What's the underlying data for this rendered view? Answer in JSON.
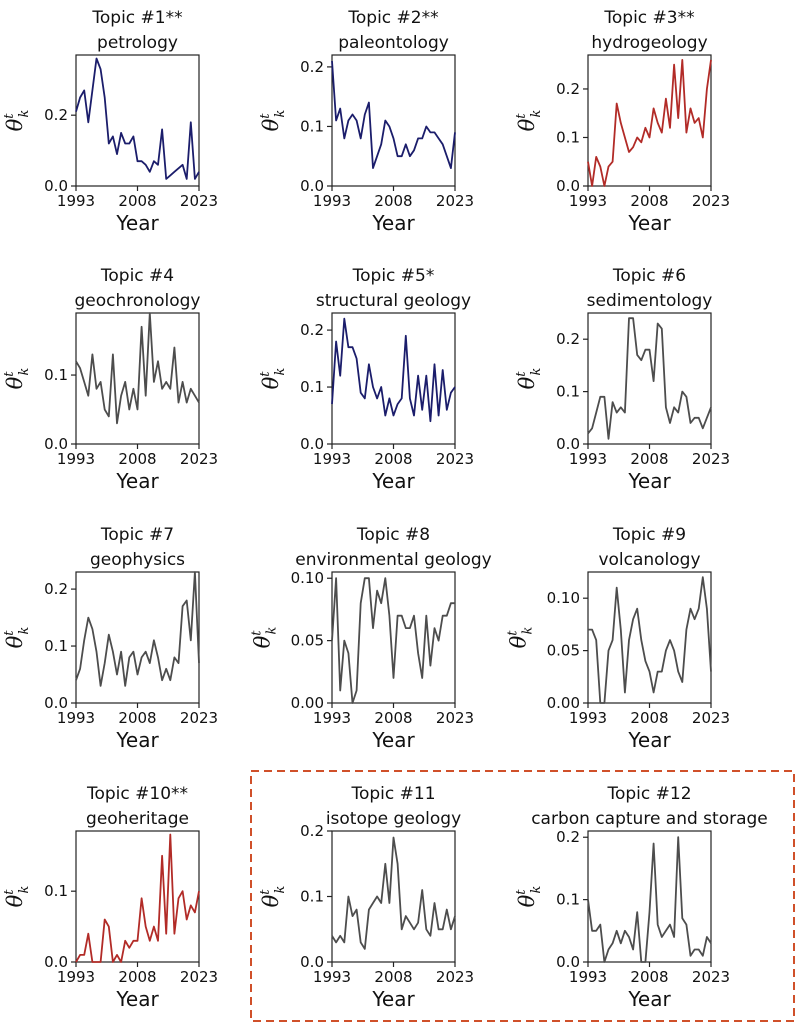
{
  "colors": {
    "navy": "#1b1d6b",
    "red": "#b22b27",
    "gray": "#4d4d4d",
    "dash": "#d0502a"
  },
  "common": {
    "xlabel": "Year",
    "ylabel_base": "θ",
    "ylabel_sup": "t",
    "ylabel_sub": "k"
  },
  "chart_data": [
    {
      "type": "line",
      "title": [
        "Topic #1**",
        "petrology"
      ],
      "color": "navy",
      "xticks": [
        "1993",
        "2008",
        "2023"
      ],
      "xlim": [
        1993,
        2023
      ],
      "yticks": [
        "0.0",
        "0.2"
      ],
      "ytick_vals": [
        0,
        0.2
      ],
      "ylim": [
        0,
        0.37
      ],
      "values": [
        0.21,
        0.25,
        0.27,
        0.18,
        0.27,
        0.36,
        0.33,
        0.25,
        0.12,
        0.14,
        0.09,
        0.15,
        0.12,
        0.12,
        0.14,
        0.07,
        0.07,
        0.06,
        0.04,
        0.07,
        0.06,
        0.16,
        0.02,
        0.03,
        0.04,
        0.05,
        0.06,
        0.02,
        0.18,
        0.02,
        0.04
      ]
    },
    {
      "type": "line",
      "title": [
        "Topic #2**",
        "paleontology"
      ],
      "color": "navy",
      "xticks": [
        "1993",
        "2008",
        "2023"
      ],
      "xlim": [
        1993,
        2023
      ],
      "yticks": [
        "0.0",
        "0.1",
        "0.2"
      ],
      "ytick_vals": [
        0,
        0.1,
        0.2
      ],
      "ylim": [
        0,
        0.22
      ],
      "values": [
        0.21,
        0.11,
        0.13,
        0.08,
        0.11,
        0.12,
        0.11,
        0.08,
        0.12,
        0.14,
        0.03,
        0.05,
        0.07,
        0.11,
        0.1,
        0.08,
        0.05,
        0.05,
        0.07,
        0.05,
        0.06,
        0.08,
        0.08,
        0.1,
        0.09,
        0.09,
        0.08,
        0.07,
        0.05,
        0.03,
        0.09
      ]
    },
    {
      "type": "line",
      "title": [
        "Topic #3**",
        "hydrogeology"
      ],
      "color": "red",
      "xticks": [
        "1993",
        "2008",
        "2023"
      ],
      "xlim": [
        1993,
        2023
      ],
      "yticks": [
        "0.0",
        "0.1",
        "0.2"
      ],
      "ytick_vals": [
        0,
        0.1,
        0.2
      ],
      "ylim": [
        0,
        0.27
      ],
      "values": [
        0.05,
        0.0,
        0.06,
        0.04,
        0.0,
        0.04,
        0.05,
        0.17,
        0.13,
        0.1,
        0.07,
        0.08,
        0.1,
        0.09,
        0.12,
        0.1,
        0.16,
        0.13,
        0.11,
        0.18,
        0.12,
        0.25,
        0.14,
        0.26,
        0.11,
        0.16,
        0.13,
        0.14,
        0.1,
        0.2,
        0.26
      ]
    },
    {
      "type": "line",
      "title": [
        "Topic #4",
        "geochronology"
      ],
      "color": "gray",
      "xticks": [
        "1993",
        "2008",
        "2023"
      ],
      "xlim": [
        1993,
        2023
      ],
      "yticks": [
        "0.0",
        "0.1"
      ],
      "ytick_vals": [
        0,
        0.1
      ],
      "ylim": [
        0,
        0.19
      ],
      "values": [
        0.12,
        0.11,
        0.09,
        0.07,
        0.13,
        0.08,
        0.09,
        0.05,
        0.04,
        0.13,
        0.03,
        0.07,
        0.09,
        0.05,
        0.08,
        0.05,
        0.17,
        0.07,
        0.19,
        0.09,
        0.12,
        0.08,
        0.09,
        0.08,
        0.14,
        0.06,
        0.09,
        0.06,
        0.08,
        0.07,
        0.06
      ]
    },
    {
      "type": "line",
      "title": [
        "Topic #5*",
        "structural geology"
      ],
      "color": "navy",
      "xticks": [
        "1993",
        "2008",
        "2023"
      ],
      "xlim": [
        1993,
        2023
      ],
      "yticks": [
        "0.0",
        "0.1",
        "0.2"
      ],
      "ytick_vals": [
        0,
        0.1,
        0.2
      ],
      "ylim": [
        0,
        0.23
      ],
      "values": [
        0.07,
        0.18,
        0.12,
        0.22,
        0.17,
        0.17,
        0.15,
        0.09,
        0.08,
        0.14,
        0.1,
        0.08,
        0.1,
        0.05,
        0.08,
        0.05,
        0.07,
        0.08,
        0.19,
        0.08,
        0.05,
        0.12,
        0.06,
        0.12,
        0.04,
        0.14,
        0.05,
        0.13,
        0.06,
        0.09,
        0.1
      ]
    },
    {
      "type": "line",
      "title": [
        "Topic #6",
        "sedimentology"
      ],
      "color": "gray",
      "xticks": [
        "1993",
        "2008",
        "2023"
      ],
      "xlim": [
        1993,
        2023
      ],
      "yticks": [
        "0.0",
        "0.1",
        "0.2"
      ],
      "ytick_vals": [
        0,
        0.1,
        0.2
      ],
      "ylim": [
        0,
        0.25
      ],
      "values": [
        0.02,
        0.03,
        0.06,
        0.09,
        0.09,
        0.01,
        0.08,
        0.06,
        0.07,
        0.06,
        0.24,
        0.24,
        0.17,
        0.16,
        0.18,
        0.18,
        0.12,
        0.23,
        0.22,
        0.07,
        0.04,
        0.07,
        0.06,
        0.1,
        0.09,
        0.04,
        0.05,
        0.05,
        0.03,
        0.05,
        0.07
      ]
    },
    {
      "type": "line",
      "title": [
        "Topic #7",
        "geophysics"
      ],
      "color": "gray",
      "xticks": [
        "1993",
        "2008",
        "2023"
      ],
      "xlim": [
        1993,
        2023
      ],
      "yticks": [
        "0.0",
        "0.1",
        "0.2"
      ],
      "ytick_vals": [
        0,
        0.1,
        0.2
      ],
      "ylim": [
        0,
        0.23
      ],
      "values": [
        0.04,
        0.06,
        0.11,
        0.15,
        0.13,
        0.09,
        0.03,
        0.07,
        0.12,
        0.09,
        0.05,
        0.09,
        0.03,
        0.08,
        0.09,
        0.05,
        0.08,
        0.09,
        0.07,
        0.11,
        0.08,
        0.04,
        0.06,
        0.04,
        0.08,
        0.07,
        0.17,
        0.18,
        0.11,
        0.23,
        0.07
      ]
    },
    {
      "type": "line",
      "title": [
        "Topic #8",
        "environmental geology"
      ],
      "color": "gray",
      "xticks": [
        "1993",
        "2008",
        "2023"
      ],
      "xlim": [
        1993,
        2023
      ],
      "yticks": [
        "0.00",
        "0.05",
        "0.10"
      ],
      "ytick_vals": [
        0,
        0.05,
        0.1
      ],
      "ylim": [
        0,
        0.105
      ],
      "values": [
        0.05,
        0.1,
        0.01,
        0.05,
        0.04,
        0.0,
        0.01,
        0.08,
        0.1,
        0.1,
        0.06,
        0.09,
        0.08,
        0.1,
        0.07,
        0.02,
        0.07,
        0.07,
        0.06,
        0.06,
        0.07,
        0.04,
        0.02,
        0.07,
        0.03,
        0.06,
        0.05,
        0.07,
        0.07,
        0.08,
        0.08
      ]
    },
    {
      "type": "line",
      "title": [
        "Topic #9",
        "volcanology"
      ],
      "color": "gray",
      "xticks": [
        "1993",
        "2008",
        "2023"
      ],
      "xlim": [
        1993,
        2023
      ],
      "yticks": [
        "0.00",
        "0.05",
        "0.10"
      ],
      "ytick_vals": [
        0,
        0.05,
        0.1
      ],
      "ylim": [
        0,
        0.125
      ],
      "values": [
        0.07,
        0.07,
        0.06,
        0.0,
        0.0,
        0.05,
        0.06,
        0.11,
        0.07,
        0.01,
        0.06,
        0.08,
        0.09,
        0.06,
        0.04,
        0.03,
        0.01,
        0.03,
        0.03,
        0.05,
        0.06,
        0.05,
        0.03,
        0.02,
        0.07,
        0.09,
        0.08,
        0.09,
        0.12,
        0.09,
        0.03
      ]
    },
    {
      "type": "line",
      "title": [
        "Topic #10**",
        "geoheritage"
      ],
      "color": "red",
      "xticks": [
        "1993",
        "2008",
        "2023"
      ],
      "xlim": [
        1993,
        2023
      ],
      "yticks": [
        "0.0",
        "0.1"
      ],
      "ytick_vals": [
        0,
        0.1
      ],
      "ylim": [
        0,
        0.185
      ],
      "values": [
        0.0,
        0.01,
        0.01,
        0.04,
        0.0,
        0.0,
        0.0,
        0.06,
        0.05,
        0.0,
        0.01,
        0.0,
        0.03,
        0.02,
        0.03,
        0.03,
        0.09,
        0.05,
        0.03,
        0.05,
        0.03,
        0.15,
        0.04,
        0.18,
        0.04,
        0.09,
        0.1,
        0.06,
        0.08,
        0.07,
        0.1
      ]
    },
    {
      "type": "line",
      "title": [
        "Topic #11",
        "isotope geology"
      ],
      "color": "gray",
      "xticks": [
        "1993",
        "2008",
        "2023"
      ],
      "xlim": [
        1993,
        2023
      ],
      "yticks": [
        "0.0",
        "0.1",
        "0.2"
      ],
      "ytick_vals": [
        0,
        0.1,
        0.2
      ],
      "ylim": [
        0,
        0.2
      ],
      "values": [
        0.04,
        0.03,
        0.04,
        0.03,
        0.1,
        0.07,
        0.08,
        0.03,
        0.02,
        0.08,
        0.09,
        0.1,
        0.09,
        0.15,
        0.09,
        0.19,
        0.15,
        0.05,
        0.07,
        0.06,
        0.05,
        0.06,
        0.11,
        0.05,
        0.04,
        0.09,
        0.05,
        0.05,
        0.08,
        0.05,
        0.07
      ]
    },
    {
      "type": "line",
      "title": [
        "Topic #12",
        "carbon capture and storage"
      ],
      "color": "gray",
      "xticks": [
        "1993",
        "2008",
        "2023"
      ],
      "xlim": [
        1993,
        2023
      ],
      "yticks": [
        "0.0",
        "0.1",
        "0.2"
      ],
      "ytick_vals": [
        0,
        0.1,
        0.2
      ],
      "ylim": [
        0,
        0.21
      ],
      "values": [
        0.1,
        0.05,
        0.05,
        0.06,
        0.0,
        0.02,
        0.03,
        0.05,
        0.03,
        0.05,
        0.04,
        0.02,
        0.08,
        0.0,
        0.0,
        0.08,
        0.19,
        0.06,
        0.04,
        0.05,
        0.06,
        0.04,
        0.2,
        0.07,
        0.06,
        0.01,
        0.02,
        0.02,
        0.01,
        0.04,
        0.03
      ]
    }
  ]
}
